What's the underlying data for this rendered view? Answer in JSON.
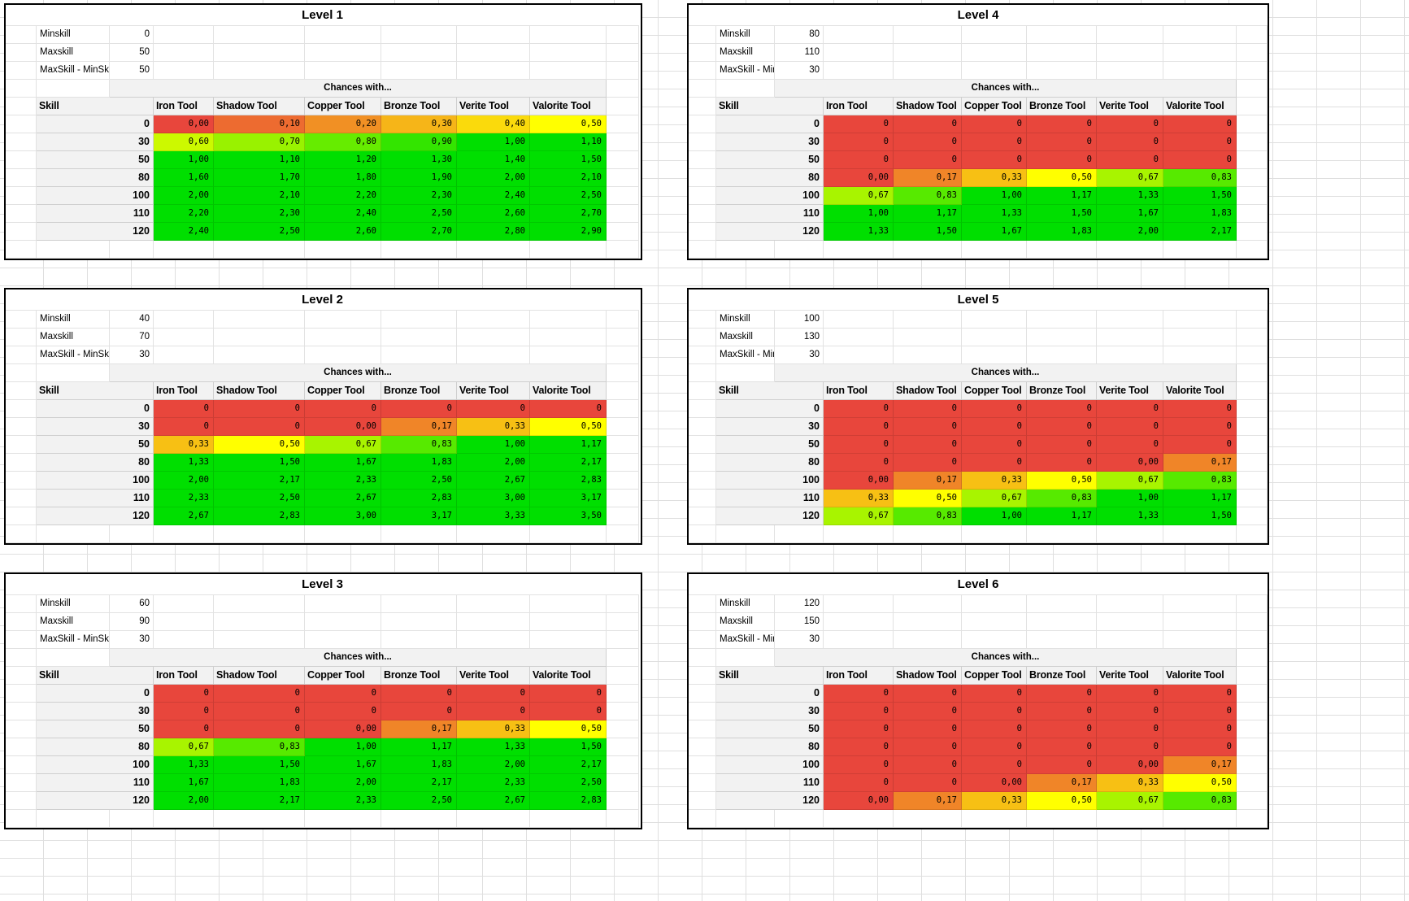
{
  "labels": {
    "minskill": "Minskill",
    "maxskill": "Maxskill",
    "diff": "MaxSkill - MinSkill",
    "chances": "Chances with...",
    "skill": "Skill"
  },
  "tools": [
    "Iron Tool",
    "Shadow Tool",
    "Copper Tool",
    "Bronze Tool",
    "Verite Tool",
    "Valorite Tool"
  ],
  "skill_rows": [
    "0",
    "30",
    "50",
    "80",
    "100",
    "110",
    "120"
  ],
  "color_scale": {
    "low": "#E8463C",
    "mid": "#FFFF00",
    "high": "#00DF00",
    "low_value": 0,
    "mid_value": 0.5,
    "high_value": 1
  },
  "ui_colors": {
    "header_bg": "#F2F2F2",
    "gridline": "#DFDFDF",
    "cell_grid": "#E2E2E2",
    "gray_grid": "#CFCFCF",
    "table_border": "#000000"
  },
  "tables": [
    {
      "title": "Level 1",
      "minskill": "0",
      "maxskill": "50",
      "diff": "50",
      "rows": [
        [
          "0,00",
          "0,10",
          "0,20",
          "0,30",
          "0,40",
          "0,50"
        ],
        [
          "0,60",
          "0,70",
          "0,80",
          "0,90",
          "1,00",
          "1,10"
        ],
        [
          "1,00",
          "1,10",
          "1,20",
          "1,30",
          "1,40",
          "1,50"
        ],
        [
          "1,60",
          "1,70",
          "1,80",
          "1,90",
          "2,00",
          "2,10"
        ],
        [
          "2,00",
          "2,10",
          "2,20",
          "2,30",
          "2,40",
          "2,50"
        ],
        [
          "2,20",
          "2,30",
          "2,40",
          "2,50",
          "2,60",
          "2,70"
        ],
        [
          "2,40",
          "2,50",
          "2,60",
          "2,70",
          "2,80",
          "2,90"
        ]
      ]
    },
    {
      "title": "Level 2",
      "minskill": "40",
      "maxskill": "70",
      "diff": "30",
      "rows": [
        [
          "0",
          "0",
          "0",
          "0",
          "0",
          "0"
        ],
        [
          "0",
          "0",
          "0,00",
          "0,17",
          "0,33",
          "0,50"
        ],
        [
          "0,33",
          "0,50",
          "0,67",
          "0,83",
          "1,00",
          "1,17"
        ],
        [
          "1,33",
          "1,50",
          "1,67",
          "1,83",
          "2,00",
          "2,17"
        ],
        [
          "2,00",
          "2,17",
          "2,33",
          "2,50",
          "2,67",
          "2,83"
        ],
        [
          "2,33",
          "2,50",
          "2,67",
          "2,83",
          "3,00",
          "3,17"
        ],
        [
          "2,67",
          "2,83",
          "3,00",
          "3,17",
          "3,33",
          "3,50"
        ]
      ]
    },
    {
      "title": "Level 3",
      "minskill": "60",
      "maxskill": "90",
      "diff": "30",
      "rows": [
        [
          "0",
          "0",
          "0",
          "0",
          "0",
          "0"
        ],
        [
          "0",
          "0",
          "0",
          "0",
          "0",
          "0"
        ],
        [
          "0",
          "0",
          "0,00",
          "0,17",
          "0,33",
          "0,50"
        ],
        [
          "0,67",
          "0,83",
          "1,00",
          "1,17",
          "1,33",
          "1,50"
        ],
        [
          "1,33",
          "1,50",
          "1,67",
          "1,83",
          "2,00",
          "2,17"
        ],
        [
          "1,67",
          "1,83",
          "2,00",
          "2,17",
          "2,33",
          "2,50"
        ],
        [
          "2,00",
          "2,17",
          "2,33",
          "2,50",
          "2,67",
          "2,83"
        ]
      ]
    },
    {
      "title": "Level 4",
      "minskill": "80",
      "maxskill": "110",
      "diff": "30",
      "rows": [
        [
          "0",
          "0",
          "0",
          "0",
          "0",
          "0"
        ],
        [
          "0",
          "0",
          "0",
          "0",
          "0",
          "0"
        ],
        [
          "0",
          "0",
          "0",
          "0",
          "0",
          "0"
        ],
        [
          "0,00",
          "0,17",
          "0,33",
          "0,50",
          "0,67",
          "0,83"
        ],
        [
          "0,67",
          "0,83",
          "1,00",
          "1,17",
          "1,33",
          "1,50"
        ],
        [
          "1,00",
          "1,17",
          "1,33",
          "1,50",
          "1,67",
          "1,83"
        ],
        [
          "1,33",
          "1,50",
          "1,67",
          "1,83",
          "2,00",
          "2,17"
        ]
      ]
    },
    {
      "title": "Level 5",
      "minskill": "100",
      "maxskill": "130",
      "diff": "30",
      "rows": [
        [
          "0",
          "0",
          "0",
          "0",
          "0",
          "0"
        ],
        [
          "0",
          "0",
          "0",
          "0",
          "0",
          "0"
        ],
        [
          "0",
          "0",
          "0",
          "0",
          "0",
          "0"
        ],
        [
          "0",
          "0",
          "0",
          "0",
          "0,00",
          "0,17"
        ],
        [
          "0,00",
          "0,17",
          "0,33",
          "0,50",
          "0,67",
          "0,83"
        ],
        [
          "0,33",
          "0,50",
          "0,67",
          "0,83",
          "1,00",
          "1,17"
        ],
        [
          "0,67",
          "0,83",
          "1,00",
          "1,17",
          "1,33",
          "1,50"
        ]
      ]
    },
    {
      "title": "Level 6",
      "minskill": "120",
      "maxskill": "150",
      "diff": "30",
      "rows": [
        [
          "0",
          "0",
          "0",
          "0",
          "0",
          "0"
        ],
        [
          "0",
          "0",
          "0",
          "0",
          "0",
          "0"
        ],
        [
          "0",
          "0",
          "0",
          "0",
          "0",
          "0"
        ],
        [
          "0",
          "0",
          "0",
          "0",
          "0",
          "0"
        ],
        [
          "0",
          "0",
          "0",
          "0",
          "0,00",
          "0,17"
        ],
        [
          "0",
          "0",
          "0,00",
          "0,17",
          "0,33",
          "0,50"
        ],
        [
          "0,00",
          "0,17",
          "0,33",
          "0,50",
          "0,67",
          "0,83"
        ]
      ]
    }
  ]
}
